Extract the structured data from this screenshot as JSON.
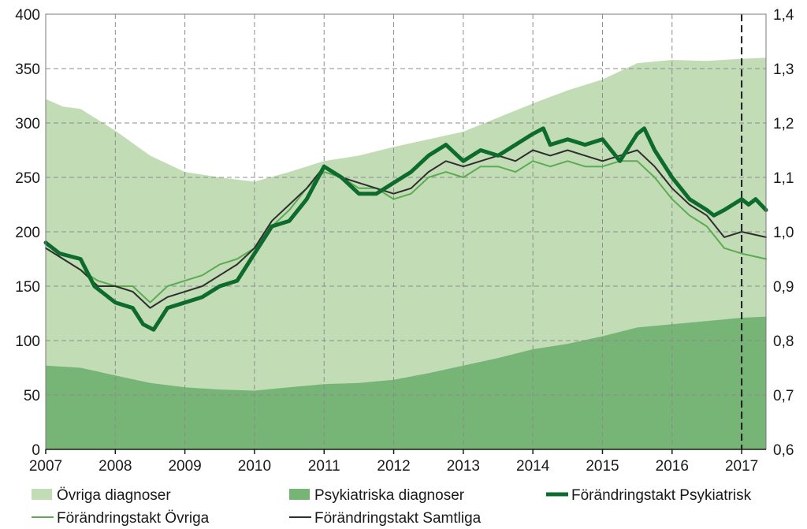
{
  "chart_data": {
    "type": "area",
    "x_range": [
      2007,
      2017.35
    ],
    "x_ticks": [
      "2007",
      "2008",
      "2009",
      "2010",
      "2011",
      "2012",
      "2013",
      "2014",
      "2015",
      "2016",
      "2017"
    ],
    "y_left": {
      "range": [
        0,
        400
      ],
      "ticks": [
        "0",
        "50",
        "100",
        "150",
        "200",
        "250",
        "300",
        "350",
        "400"
      ]
    },
    "y_right": {
      "range": [
        0.6,
        1.4
      ],
      "ticks": [
        "0,6",
        "0,7",
        "0,8",
        "0,9",
        "1,0",
        "1,1",
        "1,2",
        "1,3",
        "1,4"
      ]
    },
    "grid": true,
    "legend_position": "bottom",
    "forecast_marker_x": 2017.0,
    "colors": {
      "ovriga": "#c2dcb6",
      "psyk": "#76b575",
      "rate_psyk": "#0e6b2e",
      "rate_ovriga": "#5aac52",
      "rate_samtliga": "#2e2e2e",
      "grid": "#8c8c8c"
    },
    "series": [
      {
        "name": "Psykiatriska diagnoser",
        "kind": "area",
        "axis": "left",
        "stack": "bottom",
        "x": [
          2007,
          2007.5,
          2008,
          2008.5,
          2009,
          2009.5,
          2010,
          2010.5,
          2011,
          2011.5,
          2012,
          2012.5,
          2013,
          2013.5,
          2014,
          2014.5,
          2015,
          2015.5,
          2016,
          2016.5,
          2017,
          2017.35
        ],
        "y": [
          77,
          75,
          68,
          61,
          57,
          55,
          54,
          57,
          60,
          61,
          64,
          70,
          77,
          84,
          92,
          97,
          104,
          112,
          115,
          118,
          121,
          122
        ]
      },
      {
        "name": "Övriga diagnoser",
        "kind": "area",
        "axis": "left",
        "stack": "total",
        "x": [
          2007,
          2007.25,
          2007.5,
          2008,
          2008.5,
          2009,
          2009.5,
          2010,
          2010.5,
          2011,
          2011.5,
          2012,
          2012.5,
          2013,
          2013.5,
          2014,
          2014.5,
          2015,
          2015.5,
          2016,
          2016.5,
          2017,
          2017.35
        ],
        "y": [
          322,
          315,
          313,
          293,
          270,
          255,
          250,
          246,
          255,
          265,
          270,
          278,
          285,
          292,
          305,
          318,
          330,
          340,
          355,
          358,
          357,
          359,
          360
        ]
      },
      {
        "name": "Förändringstakt Psykiatrisk",
        "kind": "line",
        "axis": "right",
        "x": [
          2007,
          2007.2,
          2007.5,
          2007.7,
          2008,
          2008.25,
          2008.4,
          2008.55,
          2008.75,
          2009,
          2009.25,
          2009.5,
          2009.75,
          2010,
          2010.25,
          2010.5,
          2010.75,
          2011,
          2011.25,
          2011.5,
          2011.75,
          2012,
          2012.25,
          2012.5,
          2012.75,
          2013,
          2013.25,
          2013.5,
          2013.75,
          2014,
          2014.15,
          2014.25,
          2014.5,
          2014.75,
          2015,
          2015.25,
          2015.5,
          2015.6,
          2015.75,
          2016,
          2016.25,
          2016.5,
          2016.6,
          2016.75,
          2017,
          2017.1,
          2017.2,
          2017.35
        ],
        "y": [
          0.98,
          0.96,
          0.95,
          0.9,
          0.87,
          0.86,
          0.83,
          0.82,
          0.86,
          0.87,
          0.88,
          0.9,
          0.91,
          0.96,
          1.01,
          1.02,
          1.06,
          1.12,
          1.1,
          1.07,
          1.07,
          1.09,
          1.11,
          1.14,
          1.16,
          1.13,
          1.15,
          1.14,
          1.16,
          1.18,
          1.19,
          1.16,
          1.17,
          1.16,
          1.17,
          1.13,
          1.18,
          1.19,
          1.15,
          1.1,
          1.06,
          1.04,
          1.03,
          1.04,
          1.06,
          1.05,
          1.06,
          1.04
        ]
      },
      {
        "name": "Förändringstakt Övriga",
        "kind": "line",
        "axis": "right",
        "x": [
          2007,
          2007.25,
          2007.5,
          2007.75,
          2008,
          2008.25,
          2008.5,
          2008.75,
          2009,
          2009.25,
          2009.5,
          2009.75,
          2010,
          2010.25,
          2010.5,
          2010.75,
          2011,
          2011.25,
          2011.5,
          2011.75,
          2012,
          2012.25,
          2012.5,
          2012.75,
          2013,
          2013.25,
          2013.5,
          2013.75,
          2014,
          2014.25,
          2014.5,
          2014.75,
          2015,
          2015.25,
          2015.5,
          2015.75,
          2016,
          2016.25,
          2016.5,
          2016.75,
          2017,
          2017.35
        ],
        "y": [
          0.97,
          0.95,
          0.93,
          0.91,
          0.9,
          0.9,
          0.87,
          0.9,
          0.91,
          0.92,
          0.94,
          0.95,
          0.97,
          1.01,
          1.04,
          1.08,
          1.11,
          1.1,
          1.08,
          1.08,
          1.06,
          1.07,
          1.1,
          1.11,
          1.1,
          1.12,
          1.12,
          1.11,
          1.13,
          1.12,
          1.13,
          1.12,
          1.12,
          1.13,
          1.13,
          1.1,
          1.06,
          1.03,
          1.01,
          0.97,
          0.96,
          0.95
        ]
      },
      {
        "name": "Förändringstakt Samtliga",
        "kind": "line",
        "axis": "right",
        "x": [
          2007,
          2007.25,
          2007.5,
          2007.75,
          2008,
          2008.25,
          2008.5,
          2008.75,
          2009,
          2009.25,
          2009.5,
          2009.75,
          2010,
          2010.25,
          2010.5,
          2010.75,
          2011,
          2011.25,
          2011.5,
          2011.75,
          2012,
          2012.25,
          2012.5,
          2012.75,
          2013,
          2013.25,
          2013.5,
          2013.75,
          2014,
          2014.25,
          2014.5,
          2014.75,
          2015,
          2015.25,
          2015.5,
          2015.75,
          2016,
          2016.25,
          2016.5,
          2016.75,
          2017,
          2017.35
        ],
        "y": [
          0.97,
          0.95,
          0.93,
          0.9,
          0.9,
          0.89,
          0.86,
          0.88,
          0.89,
          0.9,
          0.92,
          0.94,
          0.97,
          1.02,
          1.05,
          1.08,
          1.12,
          1.1,
          1.09,
          1.08,
          1.07,
          1.08,
          1.11,
          1.13,
          1.12,
          1.13,
          1.14,
          1.13,
          1.15,
          1.14,
          1.15,
          1.14,
          1.13,
          1.14,
          1.15,
          1.12,
          1.08,
          1.05,
          1.03,
          0.99,
          1.0,
          0.99
        ]
      }
    ]
  },
  "legend": {
    "rows": [
      [
        {
          "label": "Övriga diagnoser",
          "style": "swatch",
          "color": "#c2dcb6"
        },
        {
          "label": "Psykiatriska diagnoser",
          "style": "swatch",
          "color": "#76b575"
        },
        {
          "label": "Förändringstakt Psykiatrisk",
          "style": "thick-line",
          "color": "#0e6b2e"
        }
      ],
      [
        {
          "label": "Förändringstakt Övriga",
          "style": "line",
          "color": "#5aac52"
        },
        {
          "label": "Förändringstakt Samtliga",
          "style": "line",
          "color": "#2e2e2e"
        }
      ]
    ]
  }
}
